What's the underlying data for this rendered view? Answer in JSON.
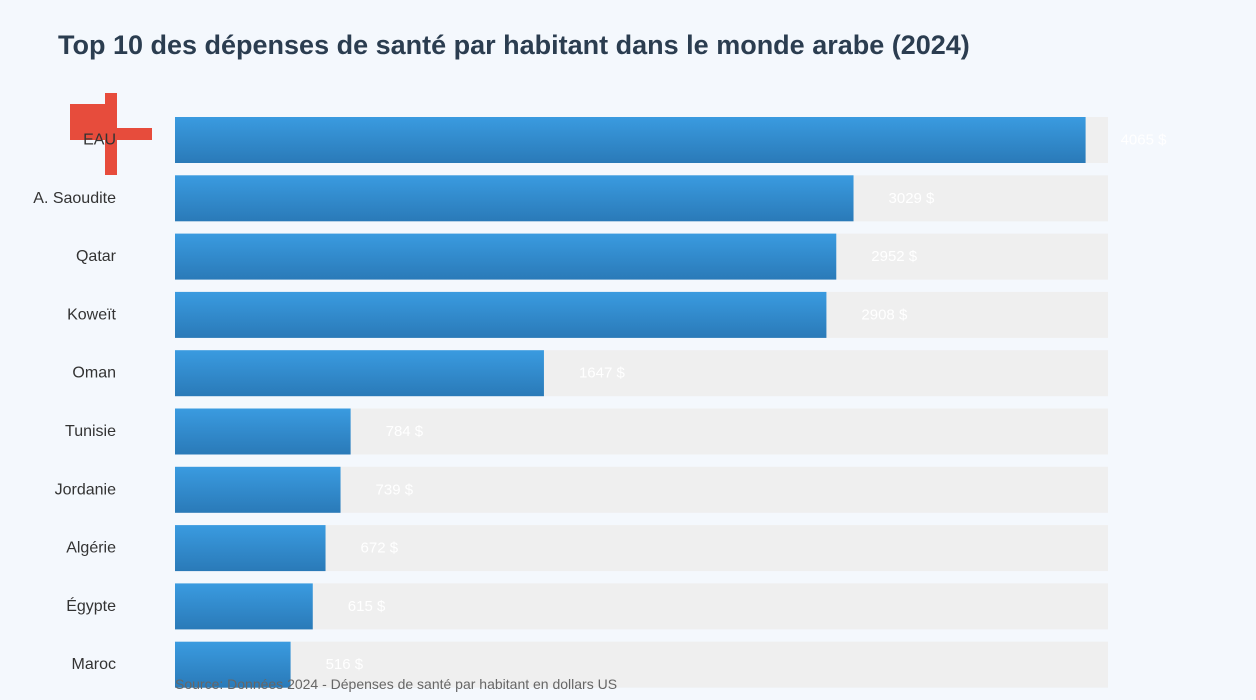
{
  "colors": {
    "background": "#f4f8fd",
    "bar_gradient_top": "#3a9be0",
    "bar_gradient_bottom": "#2a7ab8",
    "track": "#efefef",
    "title": "#2b3d50",
    "health_cross": "#e74c3c"
  },
  "icons": {
    "decoration": "medical-cross-icon"
  },
  "chart_data": {
    "type": "bar",
    "orientation": "horizontal",
    "title": "Top 10 des dépenses de santé par habitant dans le monde arabe (2024)",
    "categories": [
      "EAU",
      "A. Saoudite",
      "Qatar",
      "Koweït",
      "Oman",
      "Tunisie",
      "Jordanie",
      "Algérie",
      "Égypte",
      "Maroc"
    ],
    "values": [
      4065,
      3029,
      2952,
      2908,
      1647,
      784,
      739,
      672,
      615,
      516
    ],
    "value_suffix": " $",
    "xlim": [
      0,
      4165
    ],
    "xlabel": "",
    "ylabel": "",
    "grid": false,
    "legend": "none"
  },
  "source": "Source: Données 2024 - Dépenses de santé par habitant en dollars US"
}
